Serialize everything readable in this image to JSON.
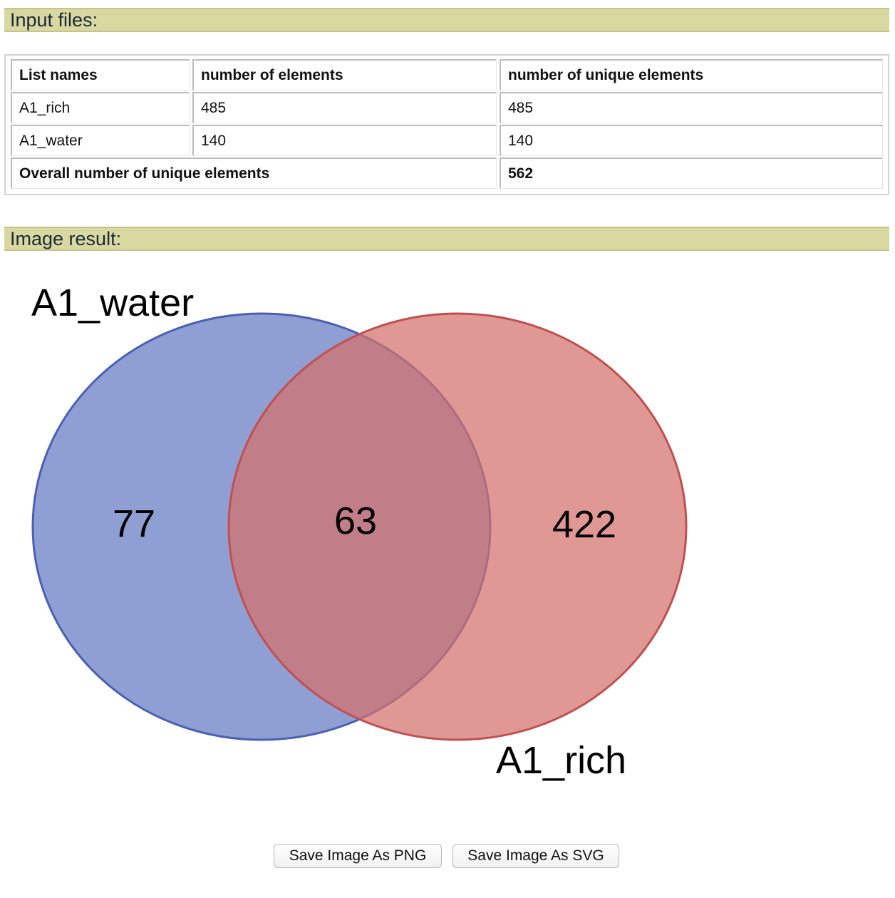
{
  "sections": {
    "input_header": "Input files:",
    "image_header": "Image result:"
  },
  "table": {
    "headers": [
      "List names",
      "number of elements",
      "number of unique elements"
    ],
    "rows": [
      {
        "name": "A1_rich",
        "elements": "485",
        "unique": "485"
      },
      {
        "name": "A1_water",
        "elements": "140",
        "unique": "140"
      }
    ],
    "overall_label": "Overall number of unique elements",
    "overall_value": "562"
  },
  "venn": {
    "sets": [
      {
        "name": "A1_water",
        "color": "#6b7fc4",
        "stroke": "#4a5fb5",
        "only": "77"
      },
      {
        "name": "A1_rich",
        "color": "#d4706b",
        "stroke": "#c05050",
        "only": "422"
      }
    ],
    "intersection": "63"
  },
  "buttons": {
    "save_png": "Save Image As PNG",
    "save_svg": "Save Image As SVG"
  }
}
